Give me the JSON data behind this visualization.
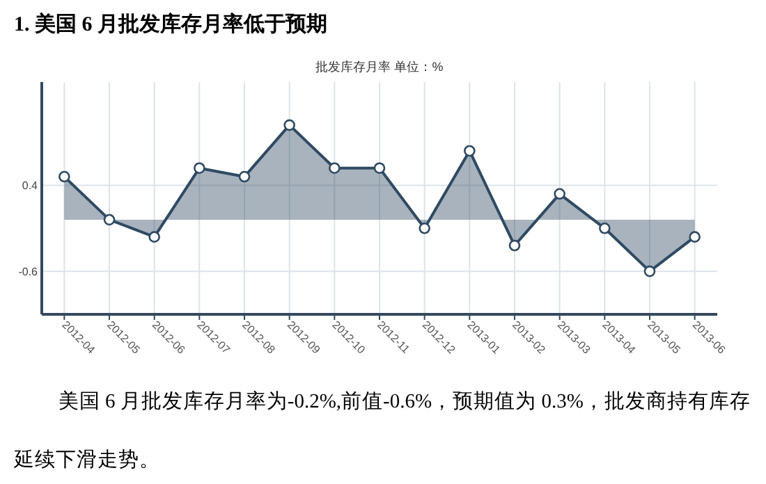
{
  "chart_data": {
    "type": "area",
    "title": "1. 美国 6 月批发库存月率低于预期",
    "subtitle": "批发库存月率 单位：%",
    "categories": [
      "2012-04",
      "2012-05",
      "2012-06",
      "2012-07",
      "2012-08",
      "2012-09",
      "2012-10",
      "2012-11",
      "2012-12",
      "2013-01",
      "2013-02",
      "2013-03",
      "2013-04",
      "2013-05",
      "2013-06"
    ],
    "series": [
      {
        "color": "#2f4a62",
        "values": [
          0.5,
          0.0,
          -0.2,
          0.6,
          0.5,
          1.1,
          0.6,
          0.6,
          -0.1,
          0.8,
          -0.3,
          0.3,
          -0.1,
          -0.6,
          -0.2
        ]
      }
    ],
    "ylim": [
      -1.1,
      1.6
    ],
    "yticks": [
      0.4,
      -0.6
    ],
    "grid": true,
    "marker": "circle",
    "annotations": [
      "美国 6 月批发库存月率为-0.2%,前值-0.6%，预期值为 0.3%，批发商持有库存延续下滑走势。"
    ]
  }
}
